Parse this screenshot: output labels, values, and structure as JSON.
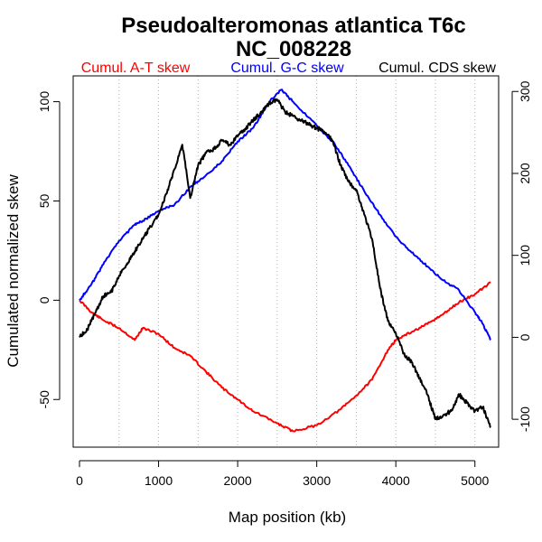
{
  "chart_data": {
    "type": "line",
    "title": "Pseudoalteromonas atlantica T6c",
    "subtitle": "NC_008228",
    "xlabel": "Map position (kb)",
    "ylabel": "Cumulated normalized skew",
    "xlim": [
      -80,
      5300
    ],
    "ylim": [
      -74,
      113
    ],
    "y2lim": [
      -134,
      319
    ],
    "xticks": [
      0,
      1000,
      2000,
      3000,
      4000,
      5000
    ],
    "yticks": [
      -50,
      0,
      50,
      100
    ],
    "y2ticks": [
      -100,
      0,
      100,
      200,
      300
    ],
    "grid_x": [
      500,
      1000,
      1500,
      2000,
      2500,
      3000,
      3500,
      4000,
      4500,
      5000
    ],
    "legend": [
      {
        "label": "Cumul. A-T skew",
        "color": "#ff0000"
      },
      {
        "label": "Cumul. G-C skew",
        "color": "#0000ff"
      },
      {
        "label": "Cumul. CDS skew",
        "color": "#000000"
      }
    ],
    "series": [
      {
        "name": "Cumul. A-T skew",
        "color": "#ff0000",
        "axis": "left",
        "x": [
          0,
          150,
          300,
          500,
          700,
          800,
          1000,
          1200,
          1400,
          1600,
          1800,
          2000,
          2200,
          2500,
          2700,
          3000,
          3300,
          3500,
          3700,
          3900,
          4000,
          4200,
          4400,
          4600,
          4800,
          5000,
          5200
        ],
        "y": [
          0,
          -6,
          -10,
          -14,
          -20,
          -14,
          -17,
          -24,
          -28,
          -36,
          -44,
          -50,
          -56,
          -62,
          -66,
          -63,
          -55,
          -48,
          -40,
          -25,
          -20,
          -16,
          -12,
          -7,
          -1,
          3,
          9
        ]
      },
      {
        "name": "Cumul. G-C skew",
        "color": "#0000ff",
        "axis": "left",
        "x": [
          0,
          150,
          300,
          500,
          700,
          800,
          1000,
          1200,
          1400,
          1600,
          1800,
          2000,
          2200,
          2400,
          2550,
          2700,
          3000,
          3200,
          3400,
          3600,
          3800,
          4000,
          4200,
          4400,
          4600,
          4800,
          5000,
          5100,
          5200
        ],
        "y": [
          0,
          8,
          18,
          30,
          38,
          40,
          45,
          48,
          57,
          63,
          70,
          80,
          87,
          100,
          106,
          100,
          88,
          80,
          68,
          55,
          43,
          32,
          24,
          17,
          10,
          5,
          -6,
          -12,
          -20
        ]
      },
      {
        "name": "Cumul. CDS skew",
        "color": "#000000",
        "axis": "right",
        "x": [
          0,
          100,
          200,
          300,
          400,
          500,
          600,
          700,
          800,
          900,
          1000,
          1100,
          1200,
          1300,
          1400,
          1500,
          1600,
          1700,
          1800,
          1900,
          2000,
          2100,
          2200,
          2300,
          2400,
          2500,
          2600,
          2700,
          2800,
          2900,
          3000,
          3100,
          3200,
          3300,
          3400,
          3500,
          3600,
          3700,
          3800,
          3900,
          4000,
          4100,
          4200,
          4300,
          4400,
          4500,
          4600,
          4700,
          4800,
          4900,
          5000,
          5100,
          5200
        ],
        "y": [
          0,
          10,
          30,
          50,
          55,
          75,
          90,
          105,
          120,
          135,
          150,
          175,
          205,
          235,
          170,
          210,
          225,
          230,
          240,
          235,
          245,
          255,
          265,
          275,
          285,
          290,
          275,
          270,
          265,
          260,
          255,
          250,
          240,
          210,
          190,
          180,
          150,
          120,
          60,
          20,
          5,
          -20,
          -30,
          -50,
          -70,
          -100,
          -95,
          -90,
          -70,
          -80,
          -90,
          -85,
          -110
        ]
      }
    ]
  }
}
